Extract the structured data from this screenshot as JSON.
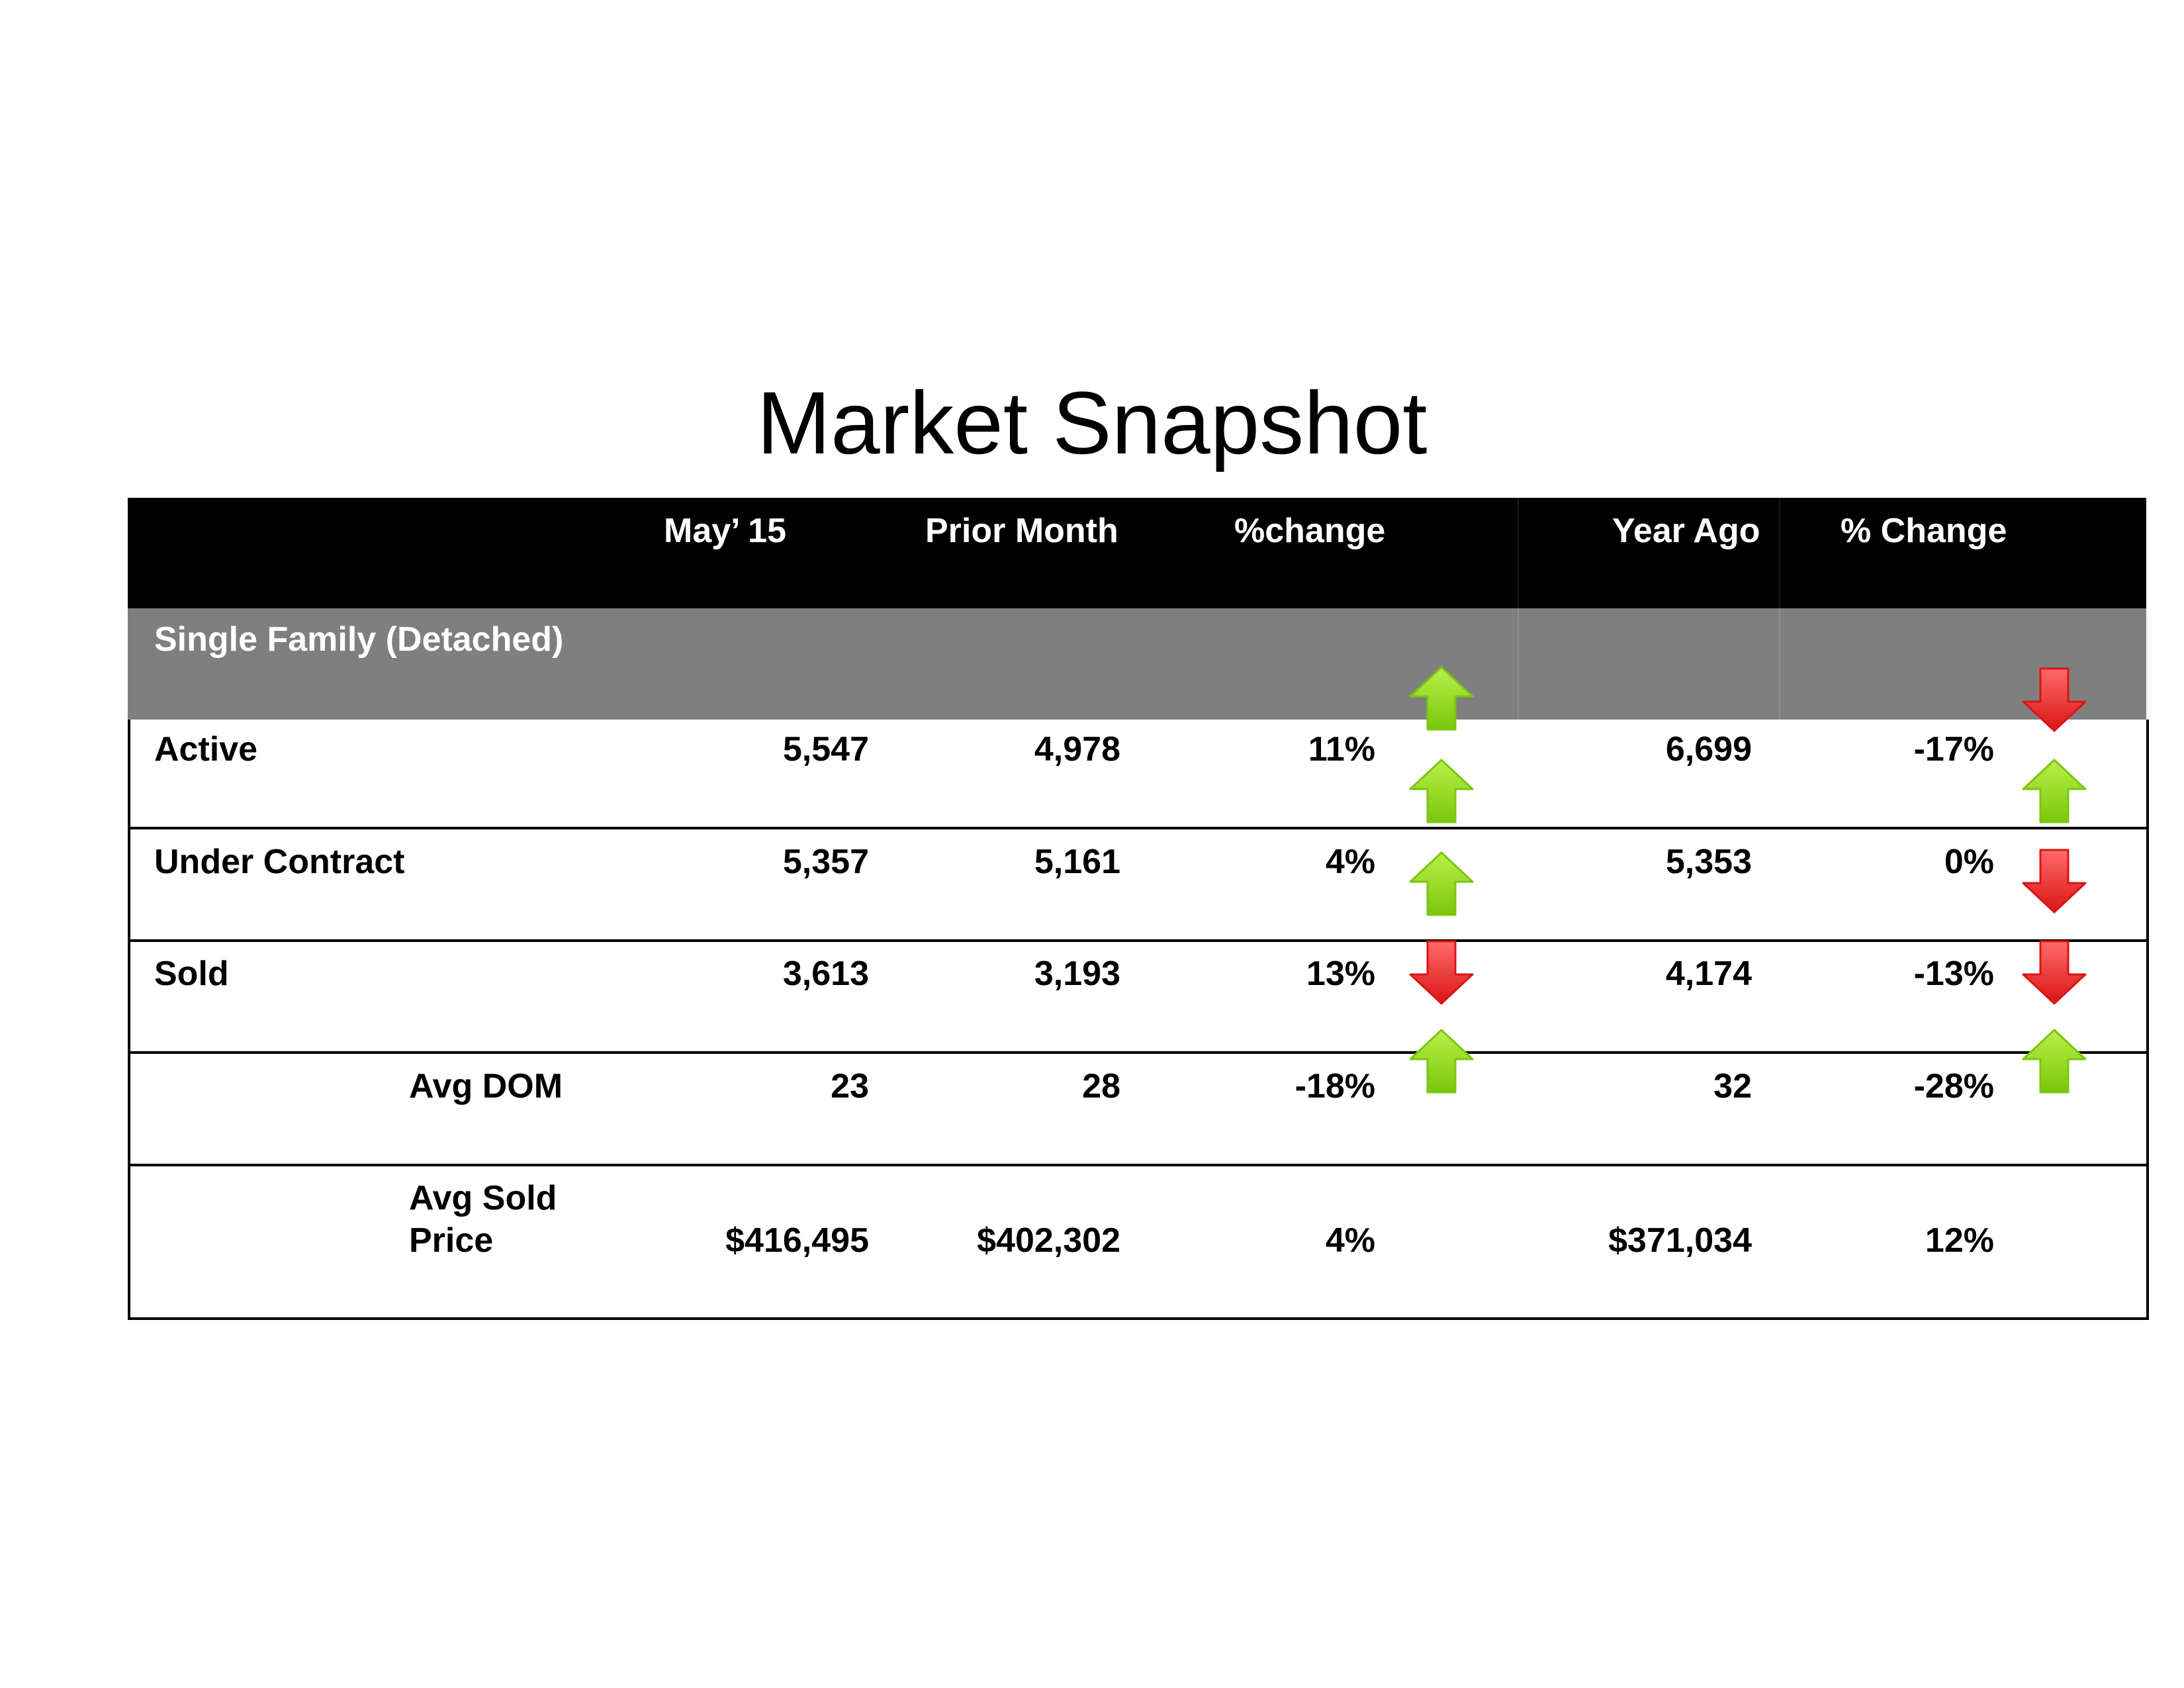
{
  "title": "Market Snapshot",
  "table": {
    "headers": {
      "month": "May’ 15",
      "prior": "Prior Month",
      "pct_month": "%change",
      "year_ago": "Year Ago",
      "pct_year": "% Change"
    },
    "section": "Single Family (Detached)",
    "rows": [
      {
        "label": "Active",
        "month": "5,547",
        "prior": "4,978",
        "pct_month": "11%",
        "year_ago": "6,699",
        "pct_year": "-17%"
      },
      {
        "label": "Under Contract",
        "month": "5,357",
        "prior": "5,161",
        "pct_month": "4%",
        "year_ago": "5,353",
        "pct_year": "0%"
      },
      {
        "label": "Sold",
        "month": "3,613",
        "prior": "3,193",
        "pct_month": "13%",
        "year_ago": "4,174",
        "pct_year": "-13%"
      },
      {
        "label": "Avg DOM",
        "month": "23",
        "prior": "28",
        "pct_month": "-18%",
        "year_ago": "32",
        "pct_year": "-28%"
      },
      {
        "label": "Avg Sold Price",
        "month": "$416,495",
        "prior": "$402,302",
        "pct_month": "4%",
        "year_ago": "$371,034",
        "pct_year": "12%"
      }
    ],
    "arrows_month": [
      "up",
      "up",
      "up",
      "down",
      "up"
    ],
    "arrows_year": [
      "down",
      "up",
      "down",
      "down",
      "up"
    ],
    "colors": {
      "up": "#7ac70c",
      "down": "#d91515",
      "header": "#000000",
      "section": "#7f7f7f"
    }
  }
}
